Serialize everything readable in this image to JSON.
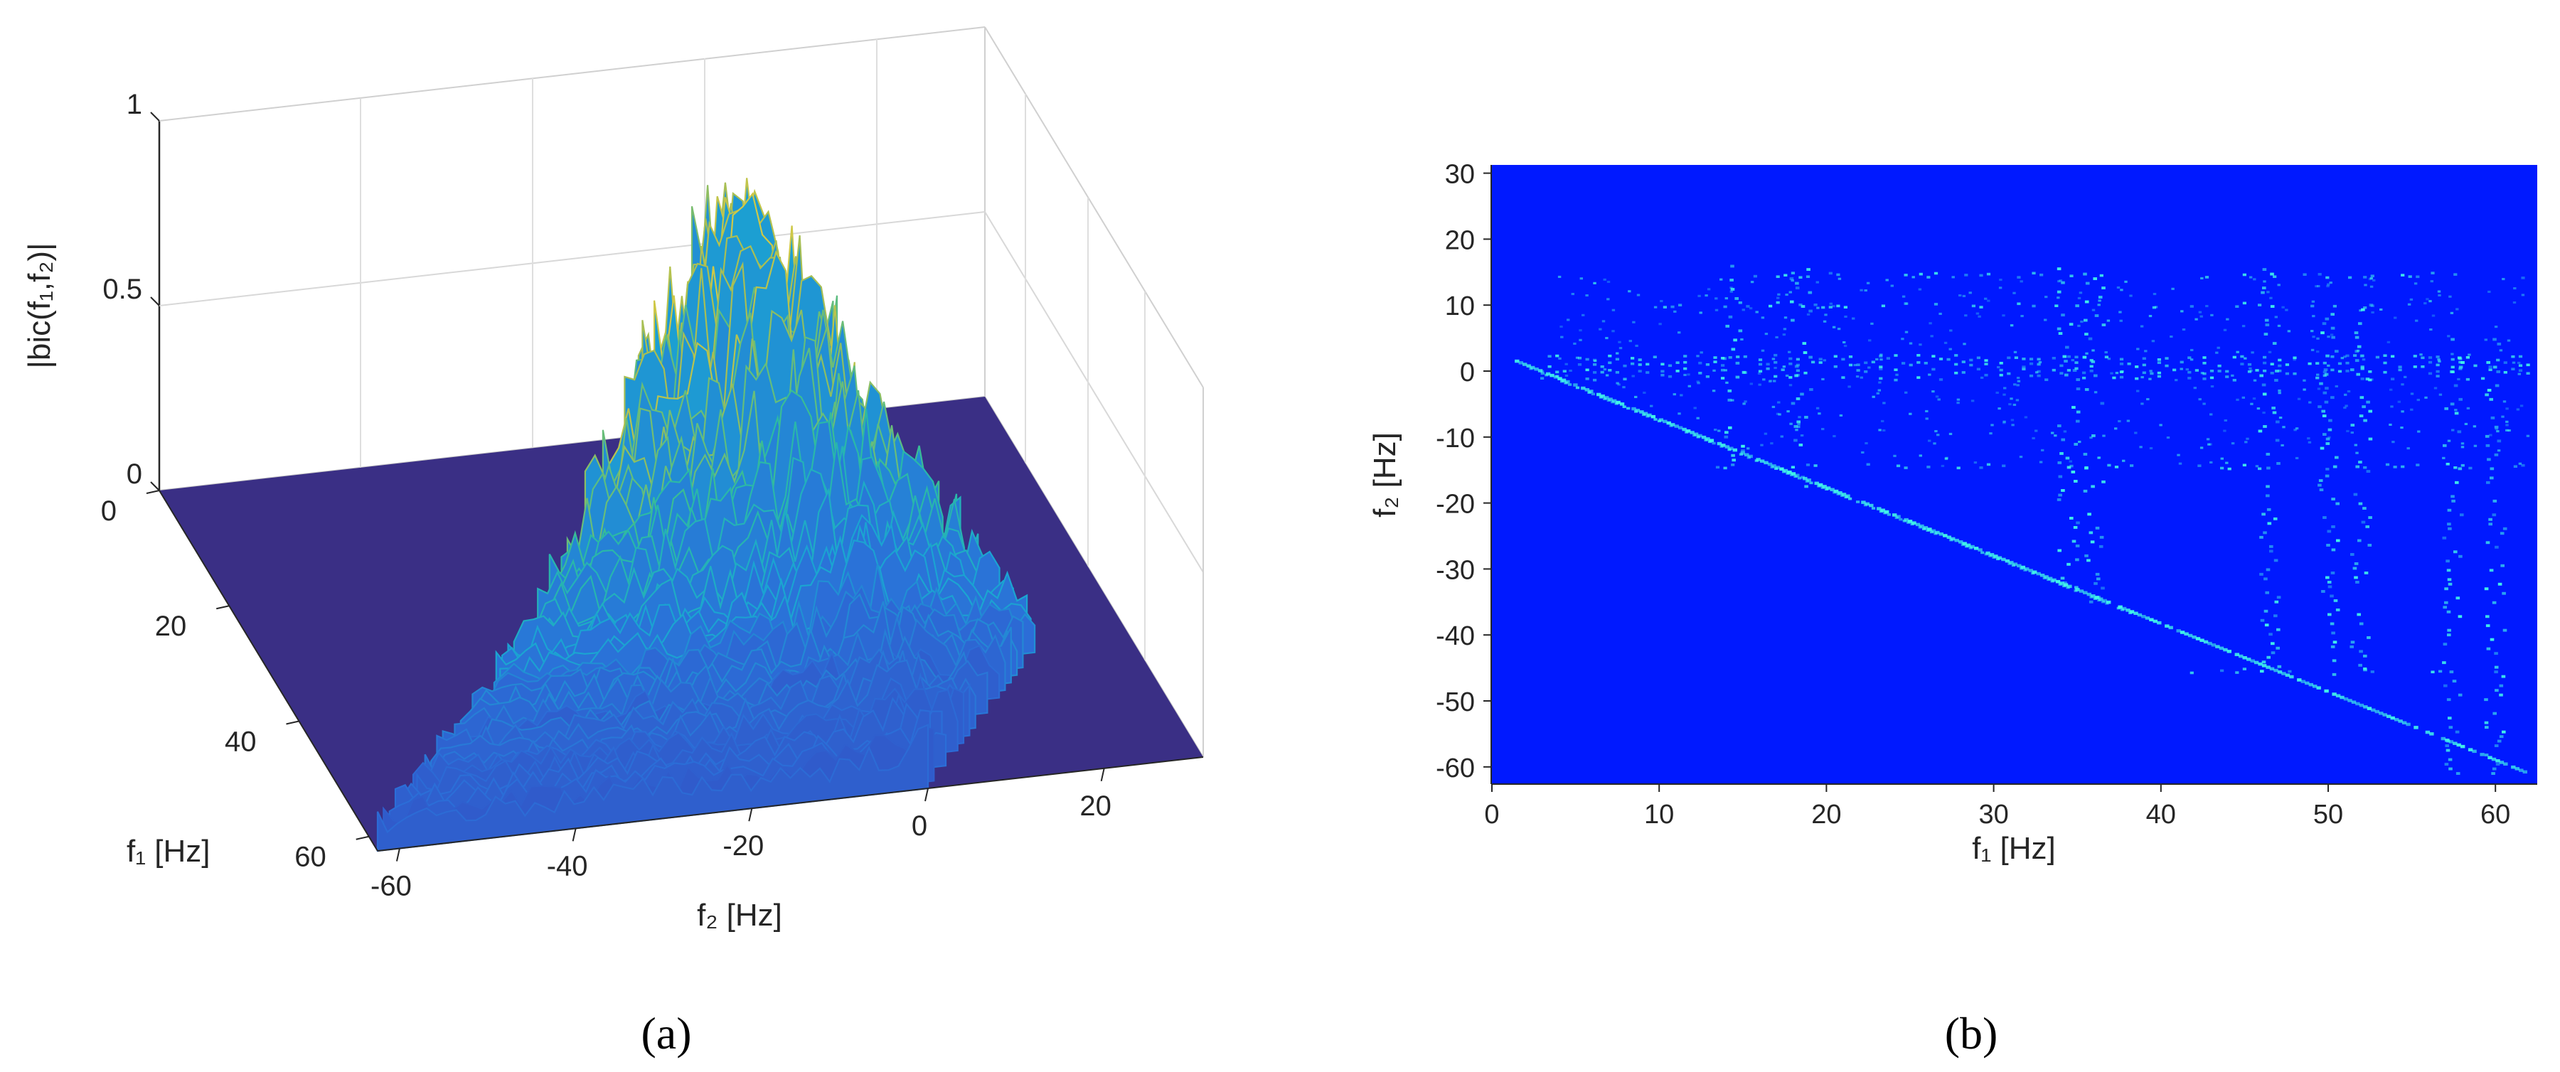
{
  "chart_data": [
    {
      "panel_label": "(a)",
      "type": "surface",
      "zlabel": "|bic(f₁,f₂)|",
      "xlabel": "f₁ [Hz]",
      "ylabel": "f₂ [Hz]",
      "z_ticks": [
        "0",
        "0.5",
        "1"
      ],
      "f1_ticks": [
        "0",
        "20",
        "40",
        "60"
      ],
      "f2_ticks": [
        "-60",
        "-40",
        "-20",
        "0",
        "20"
      ],
      "zlim": [
        0,
        1
      ],
      "f1_range": [
        0,
        62.5
      ],
      "f2_range": [
        -62.5,
        31.25
      ],
      "peak": {
        "f1": 12.5,
        "f2": 0,
        "value": 0.78
      },
      "colormap": [
        "#3e26a8",
        "#2b6fd8",
        "#1aa7d1",
        "#2fbc9c",
        "#a5be55",
        "#f2d13a"
      ]
    },
    {
      "panel_label": "(b)",
      "type": "heatmap",
      "xlabel": "f₁ [Hz]",
      "ylabel": "f₂ [Hz]",
      "xticks": [
        "0",
        "10",
        "20",
        "30",
        "40",
        "50",
        "60"
      ],
      "yticks": [
        "30",
        "20",
        "10",
        "0",
        "-10",
        "-20",
        "-30",
        "-40",
        "-50",
        "-60"
      ],
      "xlim": [
        0,
        62.5
      ],
      "ylim": [
        -62.5,
        31.25
      ],
      "background_color": "#0019ff",
      "highlight_color": "#44ffe8",
      "rows_f2": [
        0,
        1,
        2,
        -1,
        14.5,
        -14.5,
        10,
        -45.5
      ],
      "columns_f1": [
        14.5,
        18.5,
        34.5,
        36,
        46.5,
        50,
        52,
        57.5,
        60
      ],
      "diagonal": {
        "f1_start": 1.5,
        "f2_start": 1.5,
        "f1_end": 62,
        "f2_end": -61
      }
    }
  ]
}
